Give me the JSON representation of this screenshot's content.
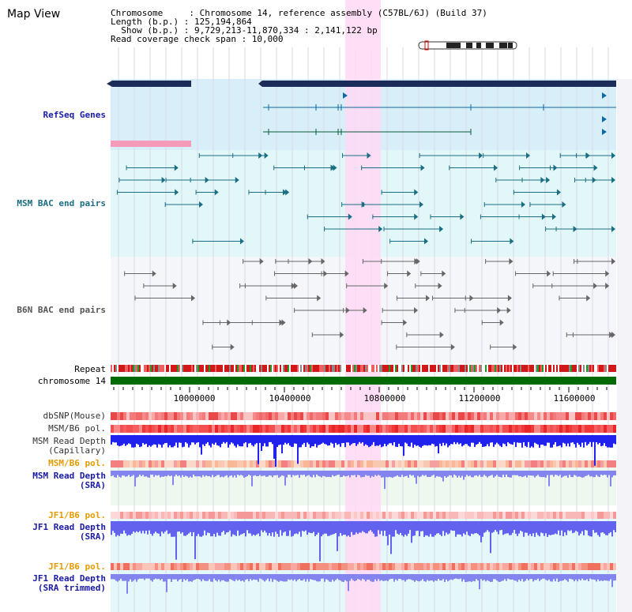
{
  "title": "Map View",
  "info": {
    "line1": "Chromosome     : Chromosome 14, reference assembly (C57BL/6J) (Build 37)",
    "line2": "Length (b.p.) : 125,194,864",
    "line3": "  Show (b.p.) : 9,729,213-11,870,334 : 2,141,122 bp",
    "line4": "Read coverage check span : 10,000"
  },
  "labels": {
    "refseq": "RefSeq Genes",
    "msm_bac": "MSM BAC end pairs",
    "b6n_bac": "B6N BAC end pairs",
    "repeat": "Repeat",
    "chromosome": "chromosome 14",
    "dbsnp": "dbSNP(Mouse)",
    "msm_b6_pol": "MSM/B6 pol.",
    "msm_cap_1": "MSM Read Depth",
    "msm_cap_2": "(Capillary)",
    "msm_b6_pol2": "MSM/B6 pol.",
    "msm_sra_1": "MSM Read Depth",
    "msm_sra_2": "(SRA)",
    "jf1_b6_pol": "JF1/B6 pol.",
    "jf1_sra_1": "JF1 Read Depth",
    "jf1_sra_2": "(SRA)",
    "jf1_b6_pol2": "JF1/B6 pol.",
    "jf1_trim_1": "JF1 Read Depth",
    "jf1_trim_2": "(SRA trimmed)"
  },
  "axis": {
    "ticks": [
      "10000000",
      "10400000",
      "10800000",
      "11200000",
      "11600000"
    ]
  },
  "colors": {
    "highlight": "#ffd8f4",
    "refseq_bg": "#d8effa",
    "msm_bg": "#e2f8f8",
    "b6n_bg": "#f5f6fa",
    "gene": "#0b6aa6",
    "msm_pair": "#1a6e84",
    "b6n_pair": "#666666",
    "ideogram_band": "#1c2c58",
    "chromosome_bar": "#006a00"
  }
}
